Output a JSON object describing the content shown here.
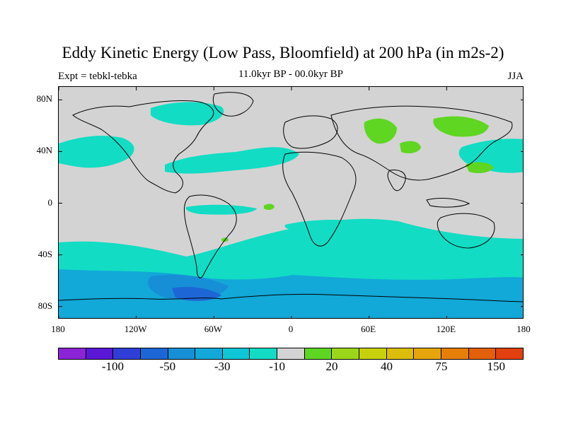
{
  "title": "Eddy Kinetic Energy (Low Pass, Bloomfield) at 200 hPa (in m2s-2)",
  "left_string": "Expt = tebkl-tebka",
  "center_string": "11.0kyr BP - 00.0kyr BP",
  "right_string": "JJA",
  "map": {
    "projection": "cylindrical equidistant",
    "lon_range": [
      -180,
      180
    ],
    "lat_range": [
      -90,
      90
    ],
    "background_color": "#d3d3d3"
  },
  "lat_ticks": [
    {
      "lat": 80,
      "label": "80N"
    },
    {
      "lat": 40,
      "label": "40N"
    },
    {
      "lat": 0,
      "label": "0"
    },
    {
      "lat": -40,
      "label": "40S"
    },
    {
      "lat": -80,
      "label": "80S"
    }
  ],
  "lon_ticks": [
    {
      "lon": -180,
      "label": "180"
    },
    {
      "lon": -120,
      "label": "120W"
    },
    {
      "lon": -60,
      "label": "60W"
    },
    {
      "lon": 0,
      "label": "0"
    },
    {
      "lon": 60,
      "label": "60E"
    },
    {
      "lon": 120,
      "label": "120E"
    },
    {
      "lon": 180,
      "label": "180"
    }
  ],
  "colorbar": {
    "colors": [
      "#8a24d6",
      "#5a17d6",
      "#2f3fd6",
      "#1d66d6",
      "#178fd6",
      "#12a8d8",
      "#0dc6d6",
      "#12dcc4",
      "#d3d3d3",
      "#5fd622",
      "#9bd61a",
      "#c6d10c",
      "#dcbd0a",
      "#e6a50b",
      "#e57f08",
      "#e3600a",
      "#e2400f"
    ],
    "labels": [
      {
        "boundary": 2,
        "label": "-100"
      },
      {
        "boundary": 4,
        "label": "-50"
      },
      {
        "boundary": 6,
        "label": "-30"
      },
      {
        "boundary": 8,
        "label": "-10"
      },
      {
        "boundary": 10,
        "label": "20"
      },
      {
        "boundary": 12,
        "label": "40"
      },
      {
        "boundary": 14,
        "label": "75"
      },
      {
        "boundary": 16,
        "label": "150"
      }
    ]
  },
  "anomaly_regions": [
    {
      "region": "northern hemisphere Atlantic storm track",
      "sign": "negative",
      "color": "#12dcc4"
    },
    {
      "region": "northern hemisphere Pacific",
      "sign": "negative",
      "color": "#12dcc4"
    },
    {
      "region": "southern ocean storm track",
      "sign": "negative",
      "color": "#12dcc4"
    },
    {
      "region": "south of South America / Antarctic coast",
      "sign": "negative",
      "color": "#178fd6"
    },
    {
      "region": "central and east Asia",
      "sign": "positive",
      "color": "#5fd622"
    }
  ]
}
